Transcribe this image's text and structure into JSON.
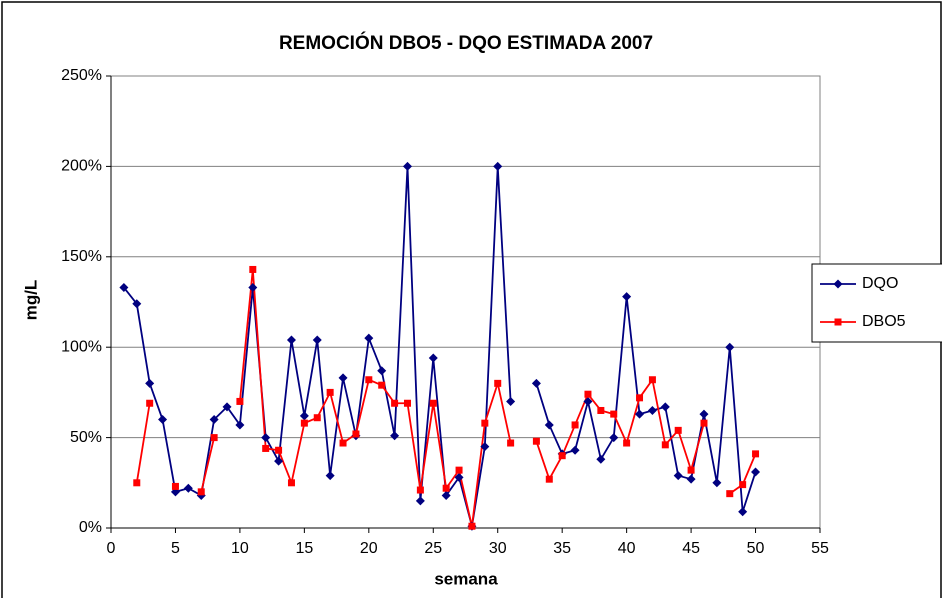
{
  "chart_data": {
    "type": "line",
    "title": "REMOCIÓN DBO5 - DQO ESTIMADA 2007",
    "x_label": "semana",
    "y_label": "mg/L",
    "x": [
      1,
      2,
      3,
      4,
      5,
      6,
      7,
      8,
      9,
      10,
      11,
      12,
      13,
      14,
      15,
      16,
      17,
      18,
      19,
      20,
      21,
      22,
      23,
      24,
      25,
      26,
      27,
      28,
      29,
      30,
      31,
      32,
      33,
      34,
      35,
      36,
      37,
      38,
      39,
      40,
      41,
      42,
      43,
      44,
      45,
      46,
      47,
      48,
      49,
      50
    ],
    "series": [
      {
        "name": "DQO",
        "color": "#000080",
        "marker": "diamond",
        "values": [
          133,
          124,
          80,
          60,
          20,
          22,
          18,
          60,
          67,
          57,
          133,
          50,
          37,
          104,
          62,
          104,
          29,
          83,
          51,
          105,
          87,
          51,
          200,
          15,
          94,
          18,
          28,
          1,
          45,
          200,
          70,
          null,
          80,
          57,
          41,
          43,
          70,
          38,
          50,
          128,
          63,
          65,
          67,
          29,
          27,
          63,
          25,
          100,
          9,
          31
        ]
      },
      {
        "name": "DBO5",
        "color": "#ff0000",
        "marker": "square",
        "values": [
          null,
          25,
          69,
          null,
          23,
          null,
          20,
          50,
          null,
          70,
          143,
          44,
          43,
          25,
          58,
          61,
          75,
          47,
          52,
          82,
          79,
          69,
          69,
          21,
          69,
          22,
          32,
          1,
          58,
          80,
          47,
          null,
          48,
          27,
          40,
          57,
          74,
          65,
          63,
          47,
          72,
          82,
          46,
          54,
          32,
          58,
          null,
          19,
          24,
          41
        ]
      }
    ],
    "xlim": [
      0,
      55
    ],
    "xticks": [
      0,
      5,
      10,
      15,
      20,
      25,
      30,
      35,
      40,
      45,
      50,
      55
    ],
    "ylim": [
      0,
      250
    ],
    "yticks": [
      {
        "value": 0,
        "label": "0%"
      },
      {
        "value": 50,
        "label": "50%"
      },
      {
        "value": 100,
        "label": "100%"
      },
      {
        "value": 150,
        "label": "150%"
      },
      {
        "value": 200,
        "label": "200%"
      },
      {
        "value": 250,
        "label": "250%"
      }
    ],
    "grid": true,
    "legend": "right"
  }
}
